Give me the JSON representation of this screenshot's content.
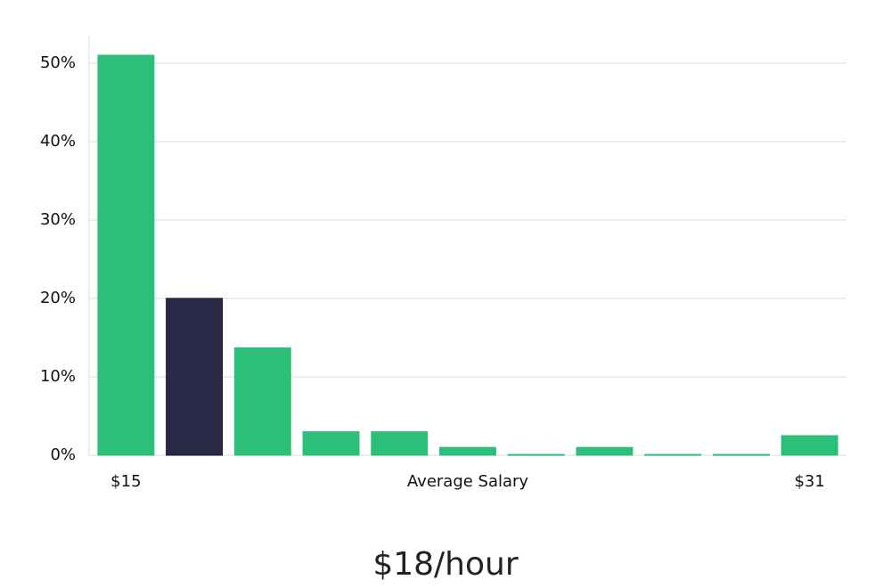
{
  "chart_data": {
    "type": "bar",
    "categories": [
      "$15",
      null,
      null,
      null,
      null,
      null,
      null,
      null,
      null,
      null,
      "$31"
    ],
    "values": [
      51,
      20,
      13.7,
      3,
      3,
      1,
      0.1,
      1,
      0.1,
      0.1,
      2.5
    ],
    "colors": [
      "#2bbf7a",
      "#2a2847",
      "#2bbf7a",
      "#2bbf7a",
      "#2bbf7a",
      "#2bbf7a",
      "#2bbf7a",
      "#2bbf7a",
      "#2bbf7a",
      "#2bbf7a",
      "#2bbf7a"
    ],
    "x_label": "Average Salary",
    "annotation": "$18/hour",
    "ylim": [
      0,
      53.5
    ],
    "yticks": [
      {
        "value": 0,
        "label": "0%"
      },
      {
        "value": 10,
        "label": "10%"
      },
      {
        "value": 20,
        "label": "20%"
      },
      {
        "value": 30,
        "label": "30%"
      },
      {
        "value": 40,
        "label": "40%"
      },
      {
        "value": 50,
        "label": "50%"
      }
    ],
    "grid": true
  }
}
